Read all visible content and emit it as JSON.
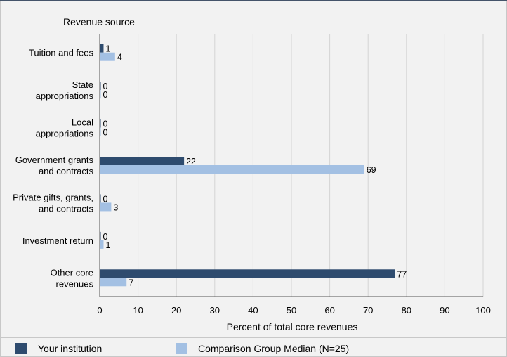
{
  "chart_data": {
    "type": "bar",
    "orientation": "horizontal",
    "title": "Revenue source",
    "xlabel": "Percent of total core revenues",
    "xlim": [
      0,
      100
    ],
    "xticks": [
      0,
      10,
      20,
      30,
      40,
      50,
      60,
      70,
      80,
      90,
      100
    ],
    "grid": "vertical",
    "categories": [
      [
        "Tuition and fees"
      ],
      [
        "State",
        "appropriations"
      ],
      [
        "Local",
        "appropriations"
      ],
      [
        "Government grants",
        "and contracts"
      ],
      [
        "Private gifts, grants,",
        "and contracts"
      ],
      [
        "Investment return"
      ],
      [
        "Other core",
        "revenues"
      ]
    ],
    "series": [
      {
        "name": "Your institution",
        "color": "#2e4b6e",
        "values": [
          1,
          0,
          0,
          22,
          0,
          0,
          77
        ]
      },
      {
        "name": "Comparison Group Median (N=25)",
        "color": "#a3c0e3",
        "values": [
          4,
          0,
          0,
          69,
          3,
          1,
          7
        ]
      }
    ],
    "legend_position": "bottom"
  }
}
